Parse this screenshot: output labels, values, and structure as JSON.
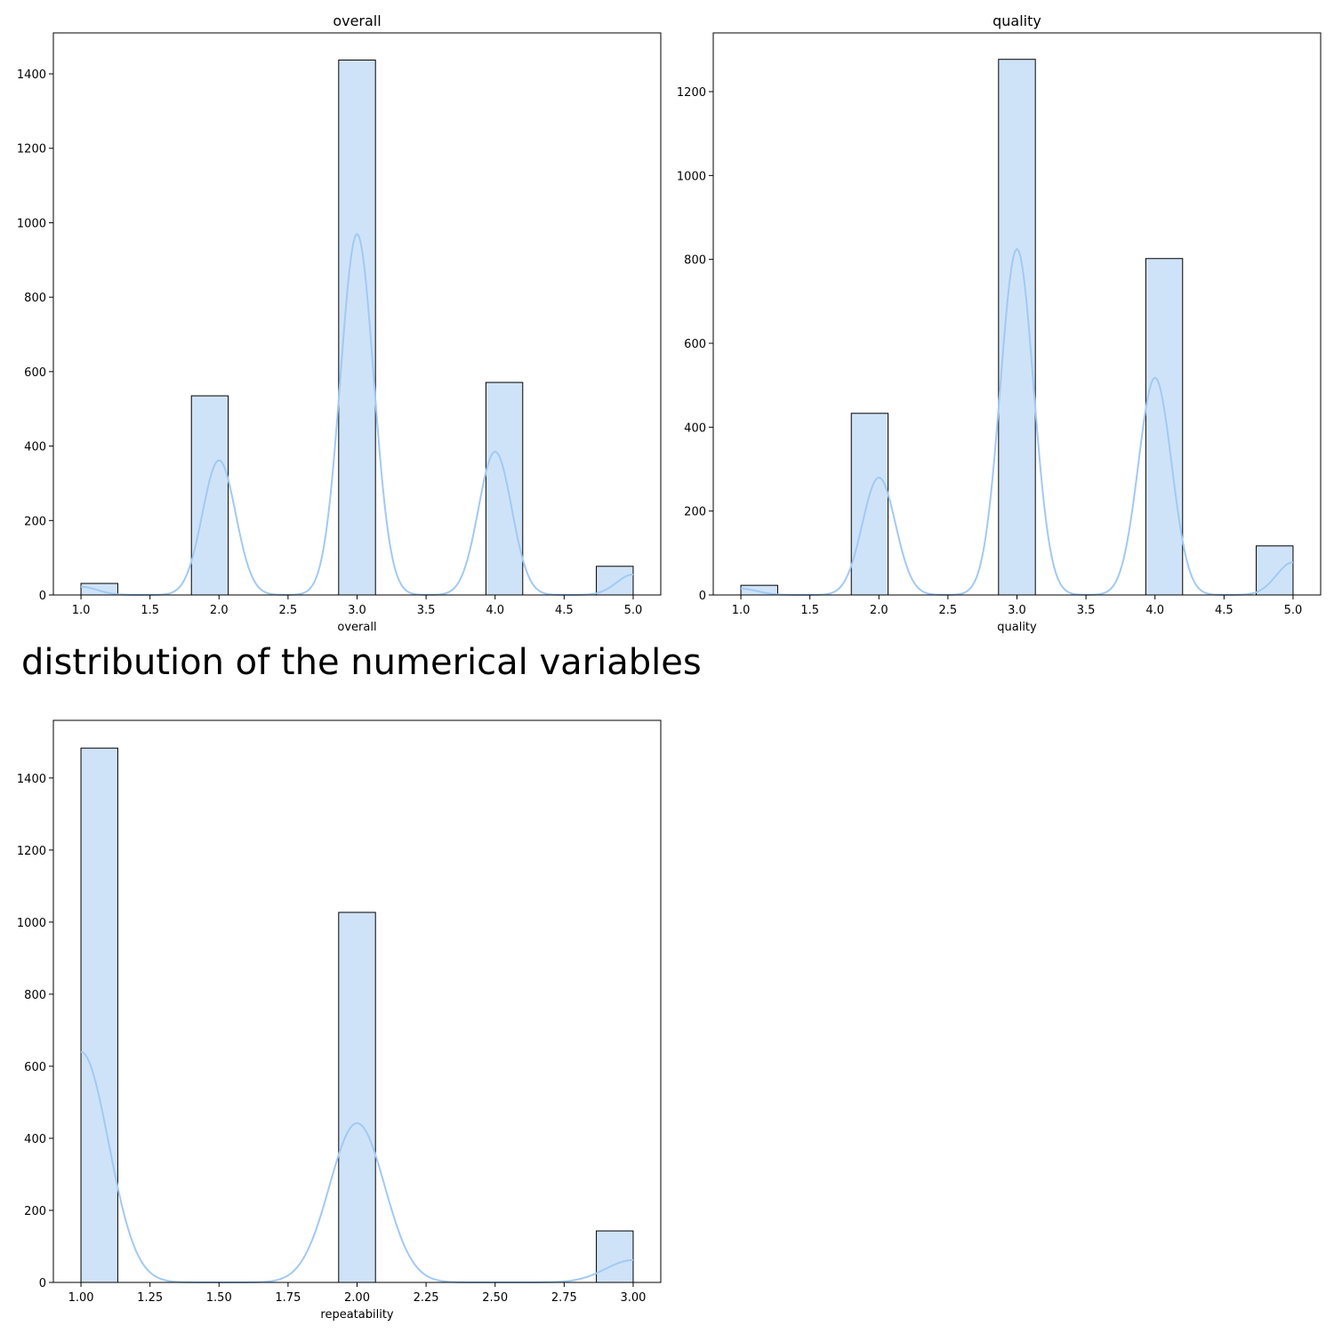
{
  "figure": {
    "suptitle": "distribution of the numerical variables"
  },
  "colors": {
    "bar_fill": "#cfe3f8",
    "bar_edge": "#000000",
    "kde_line": "#a1c9f4"
  },
  "chart_data": [
    {
      "type": "bar",
      "subtype": "histogram-with-kde",
      "title": "overall",
      "xlabel": "overall",
      "ylabel": "",
      "xlim": [
        0.8,
        5.2
      ],
      "ylim": [
        0,
        1510
      ],
      "xticks": [
        1.0,
        1.5,
        2.0,
        2.5,
        3.0,
        3.5,
        4.0,
        4.5,
        5.0
      ],
      "xtick_labels": [
        "1.0",
        "1.5",
        "2.0",
        "2.5",
        "3.0",
        "3.5",
        "4.0",
        "4.5",
        "5.0"
      ],
      "yticks": [
        0,
        200,
        400,
        600,
        800,
        1000,
        1200,
        1400
      ],
      "ytick_labels": [
        "0",
        "200",
        "400",
        "600",
        "800",
        "1000",
        "1200",
        "1400"
      ],
      "bins": [
        {
          "start": 1.0,
          "end": 1.2667,
          "count": 31
        },
        {
          "start": 1.8,
          "end": 2.0667,
          "count": 535
        },
        {
          "start": 2.8667,
          "end": 3.1333,
          "count": 1437
        },
        {
          "start": 3.9333,
          "end": 4.2,
          "count": 571
        },
        {
          "start": 4.7333,
          "end": 5.0,
          "count": 77
        }
      ],
      "kde": {
        "peaks": [
          {
            "x": 1.0,
            "y": 22
          },
          {
            "x": 2.0,
            "y": 362
          },
          {
            "x": 3.0,
            "y": 970
          },
          {
            "x": 4.0,
            "y": 385
          },
          {
            "x": 5.0,
            "y": 55
          }
        ],
        "sigma": 0.12
      }
    },
    {
      "type": "bar",
      "subtype": "histogram-with-kde",
      "title": "quality",
      "xlabel": "quality",
      "ylabel": "",
      "xlim": [
        0.8,
        5.2
      ],
      "ylim": [
        0,
        1340
      ],
      "xticks": [
        1.0,
        1.5,
        2.0,
        2.5,
        3.0,
        3.5,
        4.0,
        4.5,
        5.0
      ],
      "xtick_labels": [
        "1.0",
        "1.5",
        "2.0",
        "2.5",
        "3.0",
        "3.5",
        "4.0",
        "4.5",
        "5.0"
      ],
      "yticks": [
        0,
        200,
        400,
        600,
        800,
        1000,
        1200
      ],
      "ytick_labels": [
        "0",
        "200",
        "400",
        "600",
        "800",
        "1000",
        "1200"
      ],
      "bins": [
        {
          "start": 1.0,
          "end": 1.2667,
          "count": 23
        },
        {
          "start": 1.8,
          "end": 2.0667,
          "count": 433
        },
        {
          "start": 2.8667,
          "end": 3.1333,
          "count": 1277
        },
        {
          "start": 3.9333,
          "end": 4.2,
          "count": 802
        },
        {
          "start": 4.7333,
          "end": 5.0,
          "count": 117
        }
      ],
      "kde": {
        "peaks": [
          {
            "x": 1.0,
            "y": 15
          },
          {
            "x": 2.0,
            "y": 280
          },
          {
            "x": 3.0,
            "y": 825
          },
          {
            "x": 4.0,
            "y": 518
          },
          {
            "x": 5.0,
            "y": 78
          }
        ],
        "sigma": 0.12
      }
    },
    {
      "type": "bar",
      "subtype": "histogram-with-kde",
      "title": "",
      "xlabel": "repeatability",
      "ylabel": "",
      "xlim": [
        0.9,
        3.1
      ],
      "ylim": [
        0,
        1560
      ],
      "xticks": [
        1.0,
        1.25,
        1.5,
        1.75,
        2.0,
        2.25,
        2.5,
        2.75,
        3.0
      ],
      "xtick_labels": [
        "1.00",
        "1.25",
        "1.50",
        "1.75",
        "2.00",
        "2.25",
        "2.50",
        "2.75",
        "3.00"
      ],
      "yticks": [
        0,
        200,
        400,
        600,
        800,
        1000,
        1200,
        1400
      ],
      "ytick_labels": [
        "0",
        "200",
        "400",
        "600",
        "800",
        "1000",
        "1200",
        "1400"
      ],
      "bins": [
        {
          "start": 1.0,
          "end": 1.1333,
          "count": 1483
        },
        {
          "start": 1.9333,
          "end": 2.0667,
          "count": 1027
        },
        {
          "start": 2.8667,
          "end": 3.0,
          "count": 143
        }
      ],
      "kde": {
        "peaks": [
          {
            "x": 1.0,
            "y": 640
          },
          {
            "x": 2.0,
            "y": 442
          },
          {
            "x": 3.0,
            "y": 62
          }
        ],
        "sigma": 0.1
      }
    }
  ]
}
